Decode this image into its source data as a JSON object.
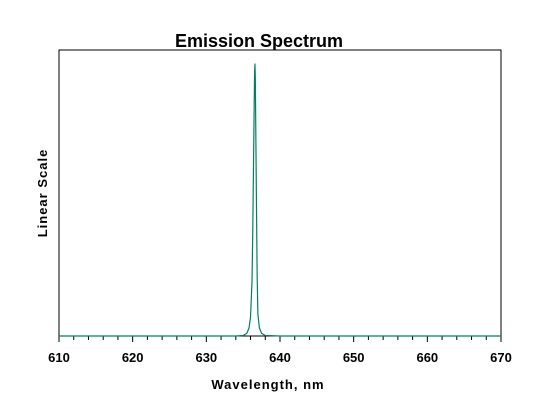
{
  "chart_data": {
    "type": "line",
    "title": "Emission Spectrum",
    "xlabel": "Wavelength, nm",
    "ylabel": "Linear Scale",
    "xlim": [
      610,
      670
    ],
    "ylim": [
      0,
      1
    ],
    "x_ticks": [
      610,
      620,
      630,
      640,
      650,
      660,
      670
    ],
    "x_minor_step": 2,
    "y_ticks_shown": false,
    "grid": false,
    "legend": "none",
    "series": [
      {
        "color": "#008060",
        "x": [
          610,
          620,
          630,
          634,
          635,
          635.5,
          635.8,
          636.0,
          636.2,
          636.3,
          636.4,
          636.5,
          636.55,
          636.6,
          636.65,
          636.7,
          636.8,
          636.9,
          637.0,
          637.2,
          637.5,
          638,
          640,
          650,
          660,
          670
        ],
        "y": [
          0,
          0,
          0,
          0,
          0.002,
          0.01,
          0.03,
          0.07,
          0.2,
          0.38,
          0.62,
          0.86,
          0.97,
          1.0,
          0.95,
          0.8,
          0.5,
          0.22,
          0.08,
          0.03,
          0.01,
          0.002,
          0,
          0,
          0,
          0
        ]
      }
    ]
  }
}
